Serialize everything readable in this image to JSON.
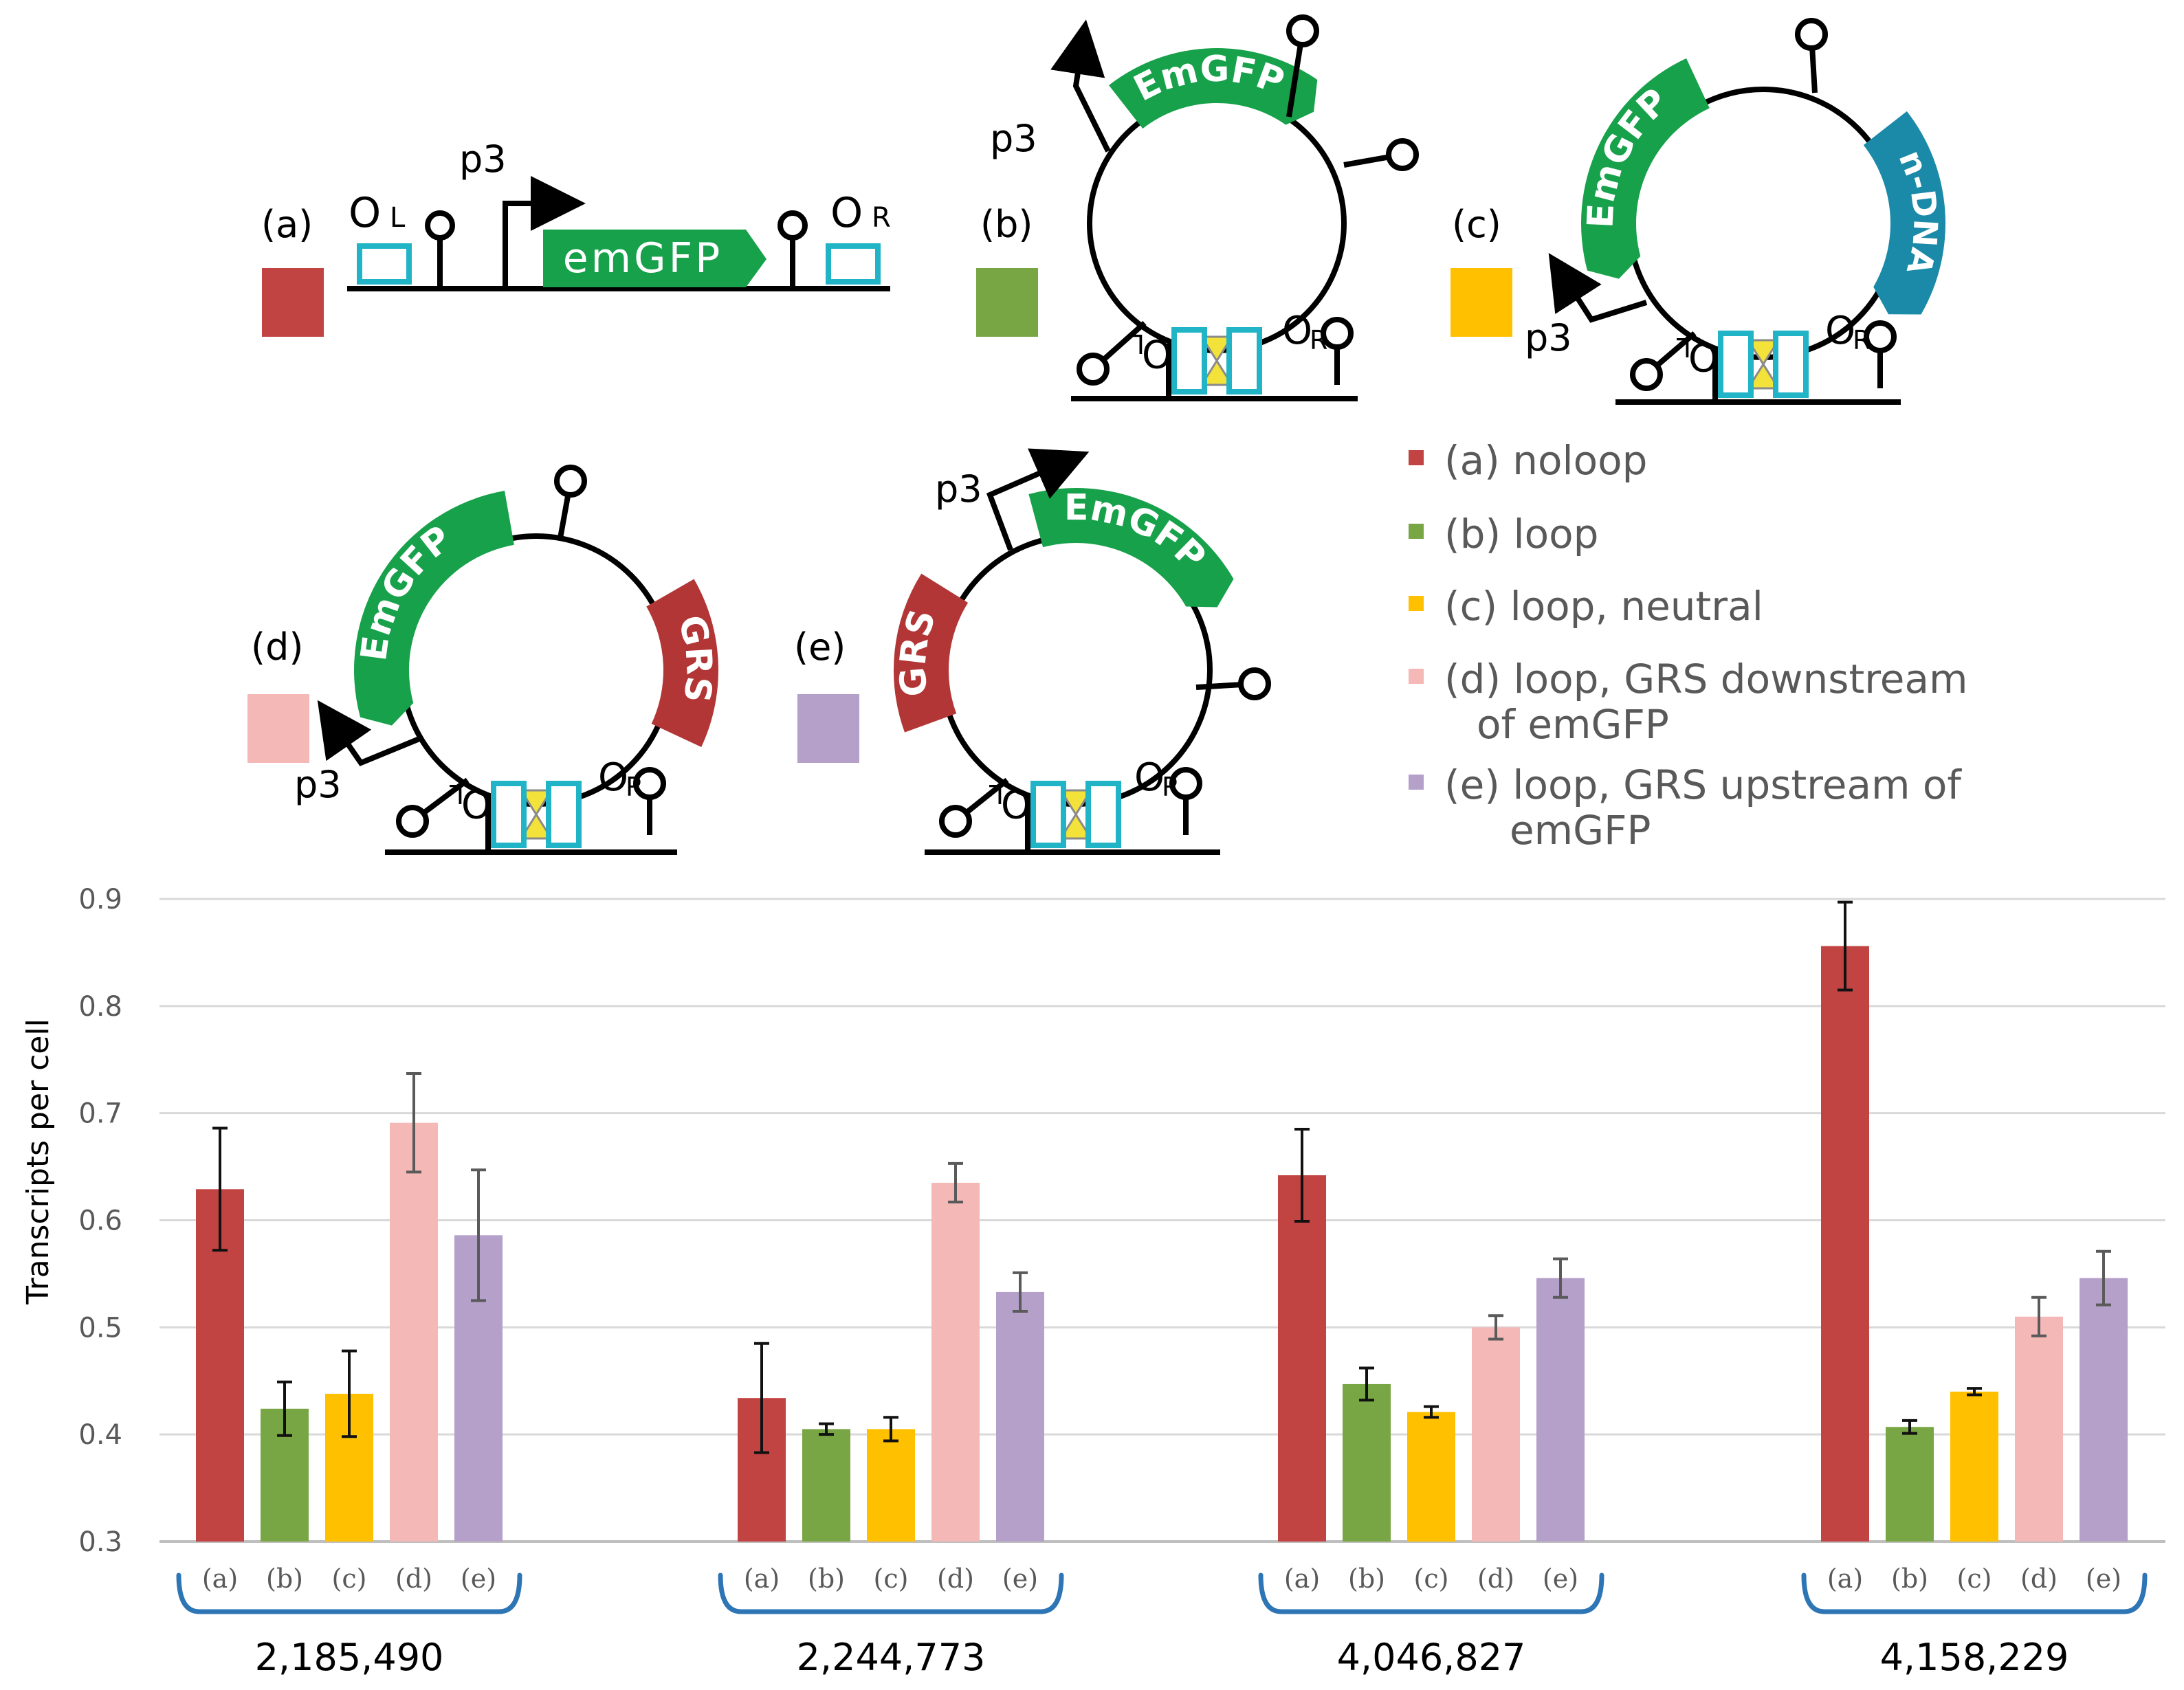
{
  "chart_data": {
    "type": "bar",
    "title": "",
    "xlabel": "",
    "ylabel": "Transcripts  per cell",
    "ylim": [
      0.3,
      0.9
    ],
    "yticks": [
      "0.3",
      "0.4",
      "0.5",
      "0.6",
      "0.7",
      "0.8",
      "0.9"
    ],
    "grid": true,
    "legend_position": "top-right",
    "colors": {
      "a": "#c14342",
      "b": "#79a644",
      "c": "#ffc000",
      "d": "#f4b8b7",
      "e": "#b4a0c9"
    },
    "bar_labels": [
      "(a)",
      "(b)",
      "(c)",
      "(d)",
      "(e)"
    ],
    "groups": [
      {
        "label": "2,185,490",
        "values": [
          0.629,
          0.424,
          0.438,
          0.691,
          0.586
        ],
        "errors": [
          0.057,
          0.025,
          0.04,
          0.046,
          0.061
        ]
      },
      {
        "label": "2,244,773",
        "values": [
          0.434,
          0.405,
          0.405,
          0.635,
          0.533
        ],
        "errors": [
          0.051,
          0.005,
          0.011,
          0.018,
          0.018
        ]
      },
      {
        "label": "4,046,827",
        "values": [
          0.642,
          0.447,
          0.421,
          0.5,
          0.546
        ],
        "errors": [
          0.043,
          0.015,
          0.005,
          0.011,
          0.018
        ]
      },
      {
        "label": "4,158,229",
        "values": [
          0.856,
          0.407,
          0.44,
          0.51,
          0.546
        ],
        "errors": [
          0.041,
          0.006,
          0.003,
          0.018,
          0.025
        ]
      }
    ],
    "series": [
      {
        "name": "(a) noloop",
        "name_line2": ""
      },
      {
        "name": "(b) loop",
        "name_line2": ""
      },
      {
        "name": "(c) loop, neutral",
        "name_line2": ""
      },
      {
        "name": "(d) loop, GRS downstream",
        "name_line2": "of emGFP"
      },
      {
        "name": "(e) loop, GRS upstream of",
        "name_line2": "emGFP"
      }
    ]
  },
  "diagram": {
    "panel_labels": [
      "(a)",
      "(b)",
      "(c)",
      "(d)",
      "(e)"
    ],
    "promoter_label": "p3",
    "gene_linear": "emGFP",
    "gene_circular": "EmGFP",
    "neutral_dna": "n-DNA",
    "grs": "GRS",
    "operator_left": "O",
    "operator_left_sub": "L",
    "operator_right": "O",
    "operator_right_sub": "R"
  }
}
